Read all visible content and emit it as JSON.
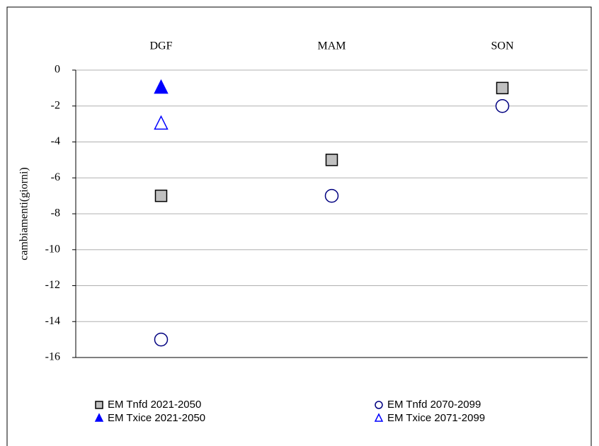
{
  "chart_data": {
    "type": "scatter",
    "y_label": "cambiamenti(giorni)",
    "categories": [
      "DGF",
      "MAM",
      "SON"
    ],
    "series": [
      {
        "name": "EM Tnfd 2021-2050",
        "color": "#c0c0c0",
        "marker": "square",
        "filled": true,
        "values": [
          -7,
          -5,
          -1
        ]
      },
      {
        "name": "EM Tnfd 2070-2099",
        "color": "#000080",
        "marker": "circle",
        "filled": false,
        "values": [
          -15,
          -7,
          -2
        ]
      },
      {
        "name": "EM Txice  2021-2050",
        "color": "#0000ff",
        "marker": "triangle",
        "filled": true,
        "values": [
          -1,
          null,
          null
        ]
      },
      {
        "name": "EM Txice  2071-2099",
        "color": "#0000ff",
        "marker": "triangle",
        "filled": false,
        "values": [
          -3,
          null,
          null
        ]
      }
    ],
    "ylim": [
      -16,
      0
    ],
    "yticks": [
      -16,
      -14,
      -12,
      -10,
      -8,
      -6,
      -4,
      -2,
      0
    ],
    "grid": true
  }
}
